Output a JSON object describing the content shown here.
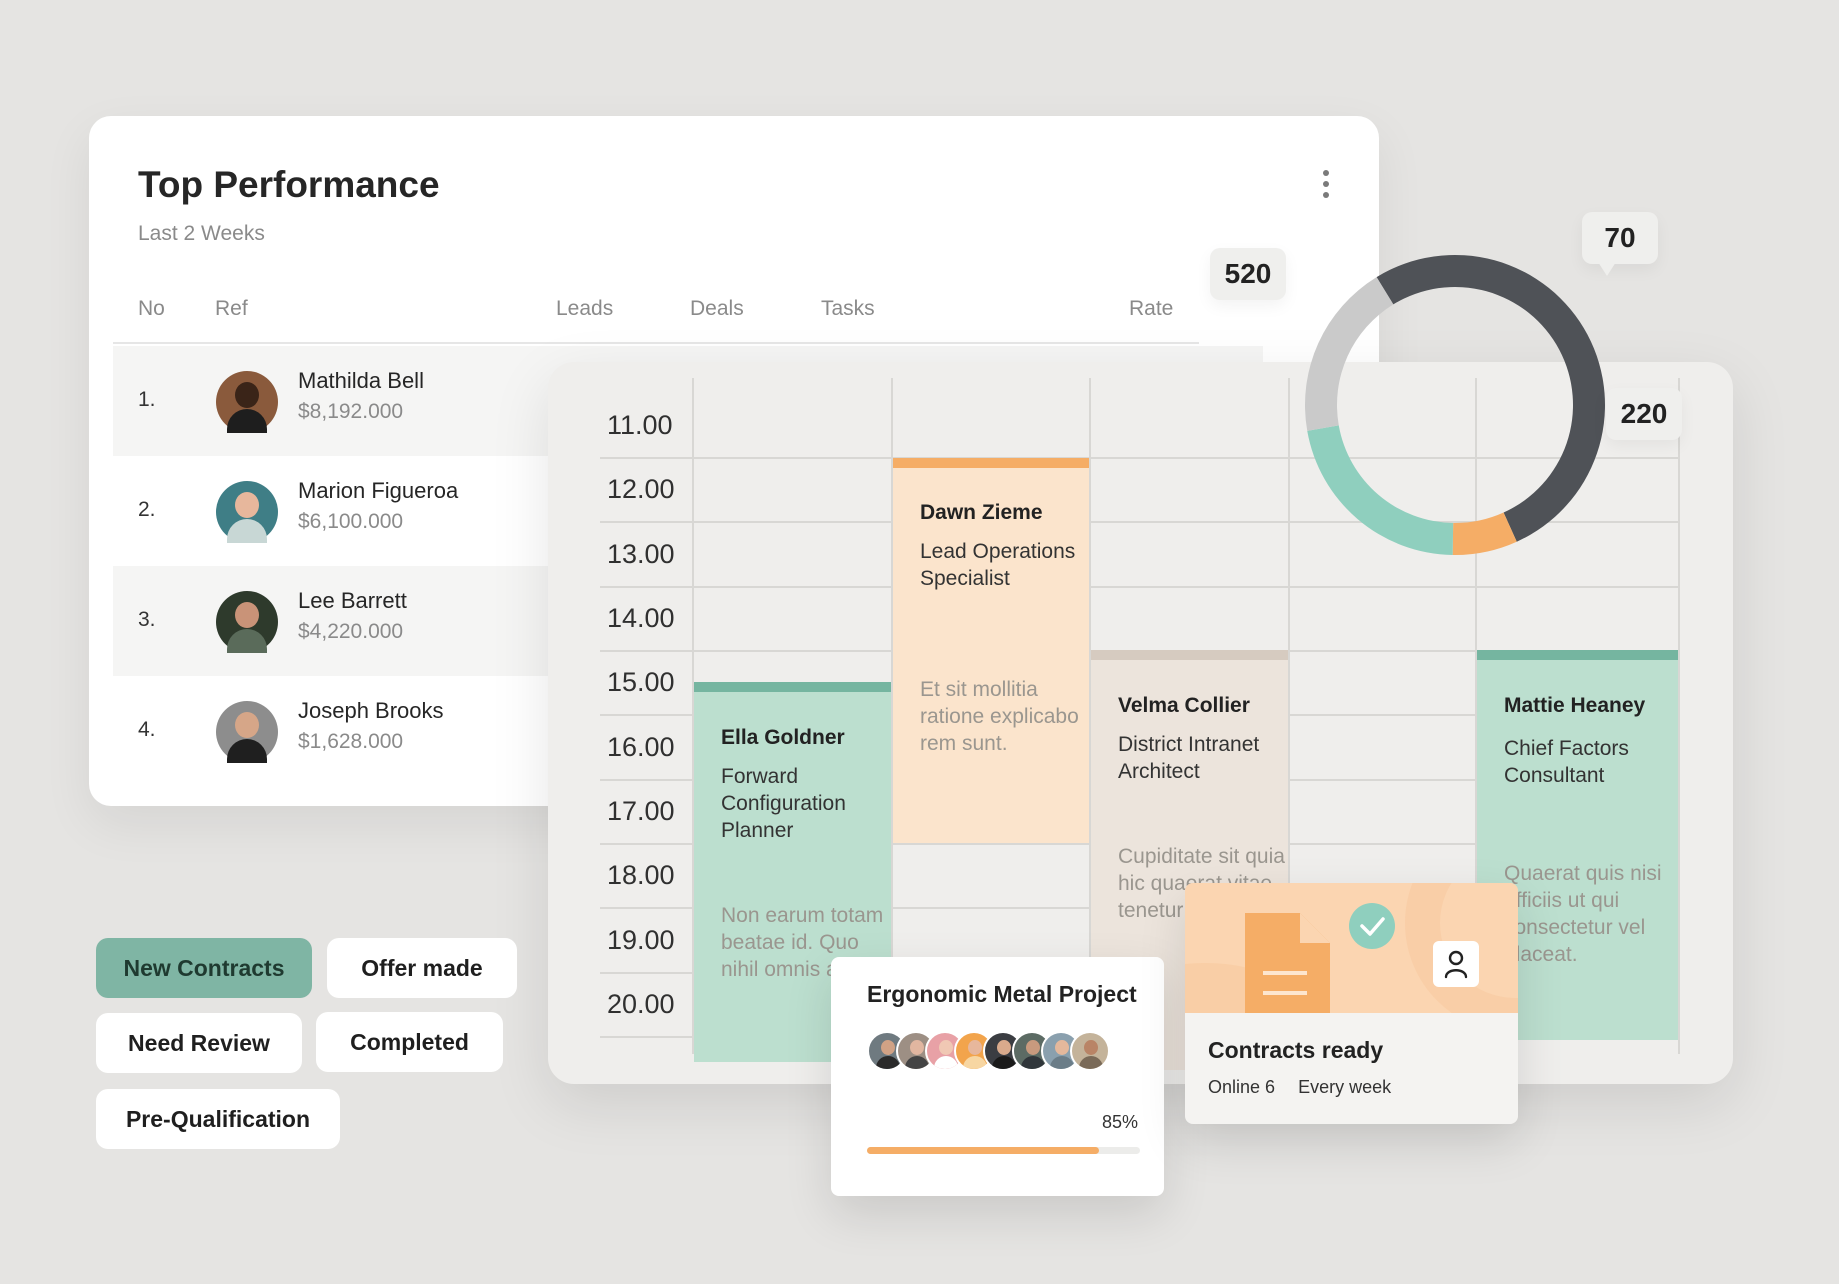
{
  "performance": {
    "title": "Top Performance",
    "subtitle": "Last 2 Weeks",
    "columns": [
      "No",
      "Ref",
      "Leads",
      "Deals",
      "Tasks",
      "Rate"
    ],
    "rows": [
      {
        "no": "1.",
        "name": "Mathilda Bell",
        "amount": "$8,192.000"
      },
      {
        "no": "2.",
        "name": "Marion Figueroa",
        "amount": "$6,100.000"
      },
      {
        "no": "3.",
        "name": "Lee Barrett",
        "amount": "$4,220.000"
      },
      {
        "no": "4.",
        "name": "Joseph Brooks",
        "amount": "$1,628.000"
      }
    ]
  },
  "schedule": {
    "times": [
      "11.00",
      "12.00",
      "13.00",
      "14.00",
      "15.00",
      "16.00",
      "17.00",
      "18.00",
      "19.00",
      "20.00"
    ],
    "events": [
      {
        "name": "Dawn Zieme",
        "role": "Lead Operations Specialist",
        "note": "Et sit mollitia ratione explicabo rem sunt."
      },
      {
        "name": "Ella Goldner",
        "role": "Forward Configuration Planner",
        "note": "Non earum totam beatae id. Quo nihil omnis alias"
      },
      {
        "name": "Velma Collier",
        "role": "District Intranet Architect",
        "note": "Cupiditate sit quia hic quaerat vitae tenetur officia tu"
      },
      {
        "name": "Mattie Heaney",
        "role": "Chief Factors Consultant",
        "note": "Quaerat quis nisi officiis ut qui consectetur vel placeat."
      }
    ]
  },
  "donut": {
    "badges": [
      "520",
      "70",
      "220"
    ],
    "segments": [
      {
        "value": 520,
        "color": "#4f5257"
      },
      {
        "value": 70,
        "color": "#f5ad66"
      },
      {
        "value": 220,
        "color": "#8fcfbe"
      },
      {
        "value": 190,
        "color": "#cacaca"
      }
    ]
  },
  "statuses": [
    "New  Contracts",
    "Offer made",
    "Need Review",
    "Completed",
    "Pre-Qualification"
  ],
  "project": {
    "title": "Ergonomic Metal Project",
    "progress_label": "85%",
    "progress": 0.85
  },
  "contracts": {
    "title": "Contracts ready",
    "online": "Online 6",
    "frequency": "Every week"
  },
  "colors": {
    "accent_green": "#7fb5a4",
    "accent_orange": "#f5ad66",
    "event_green": "#bcdfcf",
    "event_peach": "#fbe4cc",
    "event_beige": "#ece4dc"
  }
}
